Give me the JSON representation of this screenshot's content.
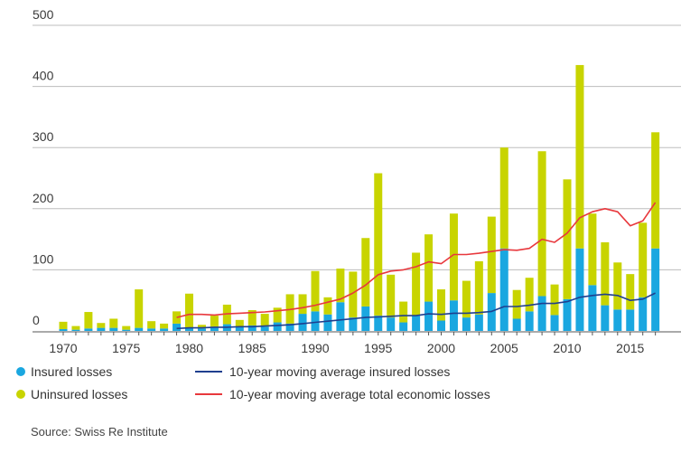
{
  "chart_data": {
    "type": "bar",
    "stacked": true,
    "x": [
      1970,
      1971,
      1972,
      1973,
      1974,
      1975,
      1976,
      1977,
      1978,
      1979,
      1980,
      1981,
      1982,
      1983,
      1984,
      1985,
      1986,
      1987,
      1988,
      1989,
      1990,
      1991,
      1992,
      1993,
      1994,
      1995,
      1996,
      1997,
      1998,
      1999,
      2000,
      2001,
      2002,
      2003,
      2004,
      2005,
      2006,
      2007,
      2008,
      2009,
      2010,
      2011,
      2012,
      2013,
      2014,
      2015,
      2016,
      2017
    ],
    "x_tick_labels": [
      "1970",
      "1975",
      "1980",
      "1985",
      "1990",
      "1995",
      "2000",
      "2005",
      "2010",
      "2015"
    ],
    "y_tick_labels": [
      "0",
      "100",
      "200",
      "300",
      "400",
      "500"
    ],
    "ylim": [
      0,
      500
    ],
    "grid": true,
    "series": [
      {
        "name": "Insured losses",
        "kind": "bar",
        "color": "#1aa7e0",
        "values": [
          3,
          2,
          4,
          5,
          5,
          2,
          5,
          4,
          4,
          12,
          6,
          4,
          7,
          11,
          6,
          9,
          7,
          14,
          12,
          28,
          32,
          27,
          47,
          22,
          40,
          25,
          22,
          14,
          25,
          48,
          17,
          50,
          22,
          27,
          62,
          135,
          20,
          32,
          57,
          26,
          52,
          135,
          75,
          42,
          35,
          35,
          55,
          135
        ]
      },
      {
        "name": "Uninsured losses",
        "kind": "bar",
        "color": "#c8d400",
        "values": [
          12,
          6,
          27,
          8,
          15,
          6,
          63,
          12,
          8,
          20,
          55,
          6,
          18,
          32,
          12,
          25,
          21,
          24,
          48,
          32,
          66,
          28,
          55,
          75,
          112,
          233,
          70,
          34,
          103,
          110,
          51,
          142,
          60,
          87,
          125,
          165,
          47,
          55,
          237,
          50,
          196,
          300,
          117,
          103,
          77,
          58,
          122,
          190
        ]
      },
      {
        "name": "10-year moving average insured losses",
        "kind": "line",
        "color": "#1f3f8f",
        "values": [
          null,
          null,
          null,
          null,
          null,
          null,
          null,
          null,
          null,
          4,
          5,
          5,
          6,
          6,
          7,
          7,
          8,
          9,
          10,
          12,
          14,
          16,
          18,
          20,
          22,
          23,
          24,
          25,
          25,
          28,
          27,
          29,
          29,
          30,
          32,
          40,
          40,
          42,
          45,
          45,
          48,
          55,
          58,
          60,
          58,
          50,
          52,
          62
        ]
      },
      {
        "name": "10-year moving average total economic losses",
        "kind": "line",
        "color": "#e8383d",
        "values": [
          null,
          null,
          null,
          null,
          null,
          null,
          null,
          null,
          null,
          22,
          27,
          27,
          26,
          28,
          29,
          30,
          31,
          33,
          35,
          38,
          42,
          47,
          52,
          62,
          75,
          92,
          98,
          100,
          105,
          113,
          110,
          125,
          125,
          127,
          130,
          133,
          132,
          135,
          150,
          145,
          160,
          185,
          195,
          200,
          195,
          172,
          180,
          210
        ]
      }
    ]
  },
  "legend": {
    "insured": "Insured losses",
    "uninsured": "Uninsured losses",
    "avg_insured": "10-year moving average insured losses",
    "avg_total": "10-year moving average total economic losses"
  },
  "source": "Source: Swiss Re Institute"
}
